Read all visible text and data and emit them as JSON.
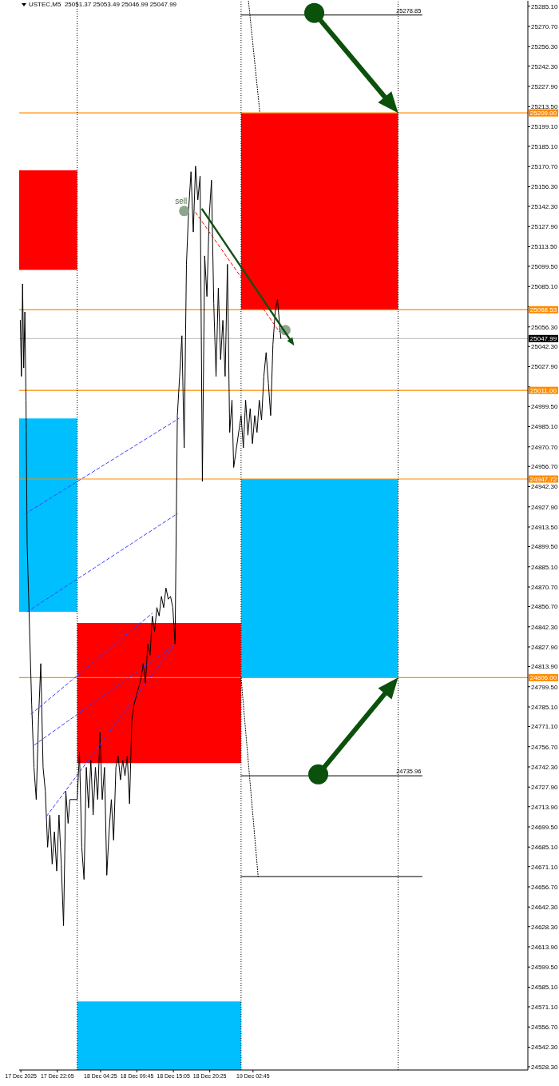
{
  "chart_data": {
    "type": "line",
    "title": "USTEC,M5  25051.37 25053.49 25046.99 25047.99",
    "xlim": [
      "2025-12-17T16:30",
      "2025-12-20T19:00"
    ],
    "xticks": [
      {
        "value": "2025-12-17T16:45",
        "label": "17 Dec 2025"
      },
      {
        "value": "2025-12-17T22:05",
        "label": "17 Dec 22:05"
      },
      {
        "value": "2025-12-18T04:25",
        "label": "18 Dec 04:25"
      },
      {
        "value": "2025-12-18T09:45",
        "label": "18 Dec 09:45"
      },
      {
        "value": "2025-12-18T15:05",
        "label": "18 Dec 15:05"
      },
      {
        "value": "2025-12-18T20:25",
        "label": "18 Dec 20:25"
      },
      {
        "value": "2025-12-19T02:45",
        "label": "19 Dec 02:45"
      }
    ],
    "ylim": [
      24526,
      25289
    ],
    "yticks": [
      {
        "value": 25285.1,
        "label": "25285.10"
      },
      {
        "value": 25270.7,
        "label": "25270.70"
      },
      {
        "value": 25256.3,
        "label": "25256.30"
      },
      {
        "value": 25242.3,
        "label": "25242.30"
      },
      {
        "value": 25227.9,
        "label": "25227.90"
      },
      {
        "value": 25213.5,
        "label": "25213.50"
      },
      {
        "value": 25199.1,
        "label": "25199.10"
      },
      {
        "value": 25185.1,
        "label": "25185.10"
      },
      {
        "value": 25170.7,
        "label": "25170.70"
      },
      {
        "value": 25156.3,
        "label": "25156.30"
      },
      {
        "value": 25142.3,
        "label": "25142.30"
      },
      {
        "value": 25127.9,
        "label": "25127.90"
      },
      {
        "value": 25113.5,
        "label": "25113.50"
      },
      {
        "value": 25099.5,
        "label": "25099.50"
      },
      {
        "value": 25085.1,
        "label": "25085.10"
      },
      {
        "value": 25070.7,
        "label": null
      },
      {
        "value": 25056.3,
        "label": "25056.30"
      },
      {
        "value": 25042.3,
        "label": "25042.30"
      },
      {
        "value": 25027.9,
        "label": "25027.90"
      },
      {
        "value": 25013.5,
        "label": null
      },
      {
        "value": 24999.5,
        "label": "24999.50"
      },
      {
        "value": 24985.1,
        "label": "24985.10"
      },
      {
        "value": 24970.7,
        "label": "24970.70"
      },
      {
        "value": 24956.7,
        "label": "24956.70"
      },
      {
        "value": 24942.3,
        "label": "24942.30"
      },
      {
        "value": 24927.9,
        "label": "24927.90"
      },
      {
        "value": 24913.5,
        "label": "24913.50"
      },
      {
        "value": 24899.5,
        "label": "24899.50"
      },
      {
        "value": 24885.1,
        "label": "24885.10"
      },
      {
        "value": 24870.7,
        "label": "24870.70"
      },
      {
        "value": 24856.7,
        "label": "24856.70"
      },
      {
        "value": 24842.3,
        "label": "24842.30"
      },
      {
        "value": 24827.9,
        "label": "24827.90"
      },
      {
        "value": 24813.9,
        "label": "24813.90"
      },
      {
        "value": 24799.5,
        "label": "24799.50"
      },
      {
        "value": 24785.1,
        "label": "24785.10"
      },
      {
        "value": 24771.1,
        "label": "24771.10"
      },
      {
        "value": 24756.7,
        "label": "24756.70"
      },
      {
        "value": 24742.3,
        "label": "24742.30"
      },
      {
        "value": 24727.9,
        "label": "24727.90"
      },
      {
        "value": 24713.9,
        "label": "24713.90"
      },
      {
        "value": 24699.5,
        "label": "24699.50"
      },
      {
        "value": 24685.1,
        "label": "24685.10"
      },
      {
        "value": 24671.1,
        "label": "24671.10"
      },
      {
        "value": 24656.7,
        "label": "24656.70"
      },
      {
        "value": 24642.3,
        "label": "24642.30"
      },
      {
        "value": 24628.3,
        "label": "24628.30"
      },
      {
        "value": 24613.9,
        "label": "24613.90"
      },
      {
        "value": 24599.5,
        "label": "24599.50"
      },
      {
        "value": 24585.1,
        "label": "24585.10"
      },
      {
        "value": 24571.1,
        "label": "24571.10"
      },
      {
        "value": 24556.7,
        "label": "24556.70"
      },
      {
        "value": 24542.3,
        "label": "24542.30"
      },
      {
        "value": 24528.3,
        "label": "24528.30"
      }
    ],
    "series": [
      {
        "type": "area",
        "color": "#ff0000",
        "x": [
          "2025-12-17T16:30",
          "2025-12-18T01:00"
        ],
        "values": [
          null,
          null
        ],
        "lower": [
          25097,
          25097
        ],
        "upper": [
          25168,
          25168
        ]
      },
      {
        "type": "area",
        "color": "#00bfff",
        "x": [
          "2025-12-17T16:30",
          "2025-12-18T01:00"
        ],
        "values": [
          null,
          null
        ],
        "lower": [
          24853,
          24853
        ],
        "upper": [
          24991,
          24991
        ]
      },
      {
        "type": "area",
        "color": "#ff0000",
        "x": [
          "2025-12-18T01:00",
          "2025-12-19T01:00"
        ],
        "values": [
          null,
          null
        ],
        "lower": [
          24745,
          24745
        ],
        "upper": [
          24845,
          24845
        ]
      },
      {
        "type": "area",
        "color": "#00bfff",
        "x": [
          "2025-12-18T01:00",
          "2025-12-19T01:00"
        ],
        "values": [
          null,
          null
        ],
        "lower": [
          24526,
          24526
        ],
        "upper": [
          24575,
          24575
        ]
      },
      {
        "type": "area",
        "color": "#ff0000",
        "x": [
          "2025-12-19T01:00",
          "2025-12-20T00:00"
        ],
        "values": [
          null,
          null
        ],
        "lower": [
          25068.53,
          25068.53
        ],
        "upper": [
          25209,
          25209
        ]
      },
      {
        "type": "area",
        "color": "#00bfff",
        "x": [
          "2025-12-19T01:00",
          "2025-12-20T00:00"
        ],
        "values": [
          null,
          null
        ],
        "lower": [
          24806,
          24806
        ],
        "upper": [
          24947.72,
          24947.72
        ]
      },
      {
        "color": "#000000",
        "x": [
          "2025-12-17T16:40",
          "2025-12-17T16:50",
          "2025-12-17T17:00",
          "2025-12-17T17:10",
          "2025-12-17T17:20",
          "2025-12-17T17:30",
          "2025-12-17T17:40",
          "2025-12-17T18:00",
          "2025-12-17T18:20",
          "2025-12-17T18:40",
          "2025-12-17T19:00",
          "2025-12-17T19:20",
          "2025-12-17T19:40",
          "2025-12-17T20:00",
          "2025-12-17T20:20",
          "2025-12-17T20:40",
          "2025-12-17T21:00",
          "2025-12-17T21:20",
          "2025-12-17T21:40",
          "2025-12-17T22:00",
          "2025-12-17T22:20",
          "2025-12-17T22:40",
          "2025-12-17T23:00",
          "2025-12-17T23:20",
          "2025-12-17T23:40",
          "2025-12-17T23:55",
          "2025-12-18T01:00",
          "2025-12-18T01:20",
          "2025-12-18T01:40",
          "2025-12-18T02:00",
          "2025-12-18T02:20",
          "2025-12-18T02:40",
          "2025-12-18T03:00",
          "2025-12-18T03:20",
          "2025-12-18T03:40",
          "2025-12-18T04:00",
          "2025-12-18T04:20",
          "2025-12-18T04:40",
          "2025-12-18T05:00",
          "2025-12-18T05:20",
          "2025-12-18T05:40",
          "2025-12-18T06:00",
          "2025-12-18T06:20",
          "2025-12-18T06:40",
          "2025-12-18T07:00",
          "2025-12-18T07:20",
          "2025-12-18T07:40",
          "2025-12-18T08:00",
          "2025-12-18T08:20",
          "2025-12-18T08:40",
          "2025-12-18T09:00",
          "2025-12-18T09:20",
          "2025-12-18T09:40",
          "2025-12-18T10:00",
          "2025-12-18T10:20",
          "2025-12-18T10:40",
          "2025-12-18T11:00",
          "2025-12-18T11:20",
          "2025-12-18T11:40",
          "2025-12-18T12:00",
          "2025-12-18T12:20",
          "2025-12-18T12:40",
          "2025-12-18T13:00",
          "2025-12-18T13:20",
          "2025-12-18T13:40",
          "2025-12-18T14:00",
          "2025-12-18T14:20",
          "2025-12-18T14:40",
          "2025-12-18T15:00",
          "2025-12-18T15:20",
          "2025-12-18T15:40",
          "2025-12-18T16:00",
          "2025-12-18T16:20",
          "2025-12-18T16:40",
          "2025-12-18T17:00",
          "2025-12-18T17:20",
          "2025-12-18T17:40",
          "2025-12-18T18:00",
          "2025-12-18T18:20",
          "2025-12-18T18:40",
          "2025-12-18T19:00",
          "2025-12-18T19:20",
          "2025-12-18T19:40",
          "2025-12-18T20:00",
          "2025-12-18T20:20",
          "2025-12-18T20:40",
          "2025-12-18T21:00",
          "2025-12-18T21:20",
          "2025-12-18T21:40",
          "2025-12-18T22:00",
          "2025-12-18T22:20",
          "2025-12-18T22:40",
          "2025-12-18T23:00",
          "2025-12-18T23:20",
          "2025-12-18T23:40",
          "2025-12-18T23:55",
          "2025-12-19T01:00",
          "2025-12-19T01:20",
          "2025-12-19T01:40",
          "2025-12-19T02:00",
          "2025-12-19T02:20",
          "2025-12-19T02:40",
          "2025-12-19T03:00",
          "2025-12-19T03:20",
          "2025-12-19T03:40",
          "2025-12-19T04:00",
          "2025-12-19T04:20",
          "2025-12-19T04:40",
          "2025-12-19T05:00",
          "2025-12-19T05:20",
          "2025-12-19T05:40",
          "2025-12-19T06:00",
          "2025-12-19T06:20",
          "2025-12-19T06:40",
          "2025-12-19T06:50"
        ],
        "values": [
          25061,
          25021,
          25087,
          25027,
          25067,
          25004,
          24902,
          24844,
          24787,
          24742,
          24719,
          24776,
          24816,
          24742,
          24725,
          24685,
          24708,
          24673,
          24696,
          24668,
          24708,
          24673,
          24629,
          24725,
          24702,
          24719,
          24719,
          24753,
          24685,
          24662,
          24742,
          24713,
          24747,
          24708,
          24742,
          24719,
          24767,
          24719,
          24742,
          24665,
          24696,
          24719,
          24690,
          24742,
          24750,
          24733,
          24747,
          24736,
          24750,
          24716,
          24776,
          24787,
          24793,
          24799,
          24805,
          24816,
          24802,
          24830,
          24822,
          24850,
          24839,
          24856,
          24850,
          24864,
          24856,
          24870,
          24862,
          24864,
          24856,
          24830,
          24993,
          25021,
          25050,
          24970,
          25101,
          25141,
          25167,
          25124,
          25171,
          25147,
          25164,
          24946,
          25107,
          25078,
          25135,
          25161,
          25073,
          25021,
          25084,
          25033,
          25061,
          25021,
          25101,
          24981,
          25004,
          24956,
          24993,
          24970,
          25004,
          24979,
          24998,
          24973,
          24993,
          24981,
          25004,
          24990,
          25021,
          25038,
          25016,
          24993,
          25044,
          25067,
          25076,
          25056,
          25047.99
        ]
      },
      {
        "type": "line",
        "color": "#3c3cff",
        "line_style": "dashed",
        "x": [
          "2025-12-17T17:25",
          "2025-12-18T15:55"
        ],
        "values": [
          24923,
          24991
        ]
      },
      {
        "type": "line",
        "color": "#3c3cff",
        "line_style": "dashed",
        "x": [
          "2025-12-17T17:40",
          "2025-12-18T15:40"
        ],
        "values": [
          24853,
          24923
        ]
      },
      {
        "type": "line",
        "color": "#3c3cff",
        "line_style": "dashed",
        "x": [
          "2025-12-17T18:15",
          "2025-12-18T12:00"
        ],
        "values": [
          24780,
          24852
        ]
      },
      {
        "type": "line",
        "color": "#3c3cff",
        "line_style": "dashed",
        "x": [
          "2025-12-17T18:45",
          "2025-12-18T15:10"
        ],
        "values": [
          24758,
          24829
        ]
      },
      {
        "type": "line",
        "color": "#3c3cff",
        "line_style": "dashed",
        "x": [
          "2025-12-17T20:30",
          "2025-12-18T15:10"
        ],
        "values": [
          24707,
          24829
        ]
      },
      {
        "type": "line",
        "color": "#ff0000",
        "line_style": "dashed",
        "x": [
          "2025-12-18T18:20",
          "2025-12-19T06:35"
        ],
        "values": [
          25138,
          25053
        ]
      },
      {
        "type": "line",
        "color": "#000000",
        "x": [
          "2025-12-19T01:00",
          "2025-12-20T03:30"
        ],
        "values": [
          25278.85,
          25278.85
        ],
        "value_labels": [
          null,
          "25278.85"
        ]
      },
      {
        "type": "line",
        "color": "#000000",
        "x": [
          "2025-12-19T01:00",
          "2025-12-20T03:30"
        ],
        "values": [
          24735.96,
          24735.96
        ],
        "value_labels": [
          null,
          "24735.96"
        ]
      },
      {
        "type": "line",
        "color": "#000000",
        "x": [
          "2025-12-19T01:00",
          "2025-12-20T03:30"
        ],
        "values": [
          24664,
          24664
        ]
      },
      {
        "type": "line",
        "color": "#000000",
        "line_style": "dotted",
        "x": [
          "2025-12-19T02:05",
          "2025-12-19T03:45"
        ],
        "values": [
          25289,
          25209
        ]
      },
      {
        "type": "line",
        "color": "#000000",
        "line_style": "dotted",
        "x": [
          "2025-12-19T01:00",
          "2025-12-19T03:30"
        ],
        "values": [
          24806,
          24664
        ]
      },
      {
        "type": "scatter",
        "color": "#8da68d",
        "marker": "circle",
        "x": [
          "2025-12-18T16:40",
          "2025-12-19T07:30"
        ],
        "values": [
          25139,
          25054
        ]
      }
    ],
    "ref_lines": [
      {
        "axis": "y",
        "value": 25209,
        "label": "25209.00",
        "color": "#ff8c00"
      },
      {
        "axis": "y",
        "value": 25068.53,
        "label": "25068.53",
        "color": "#ff8c00"
      },
      {
        "axis": "y",
        "value": 25047.99,
        "label": "25047.99",
        "color": "#c8c8c8"
      },
      {
        "axis": "y",
        "value": 25011,
        "label": "25011.00",
        "color": "#ff8c00"
      },
      {
        "axis": "y",
        "value": 24947.72,
        "label": "24947.72",
        "color": "#ff8c00"
      },
      {
        "axis": "y",
        "value": 24806,
        "label": "24806.00",
        "color": "#ff8c00"
      },
      {
        "axis": "x",
        "value": "2025-12-18T01:00",
        "color": "#000000",
        "line_style": "dotted"
      },
      {
        "axis": "x",
        "value": "2025-12-19T01:00",
        "color": "#000000",
        "line_style": "dotted"
      },
      {
        "axis": "x",
        "value": "2025-12-20T00:00",
        "color": "#000000",
        "line_style": "dotted"
      }
    ],
    "annotations": [
      {
        "text": "sell",
        "x": "2025-12-18T16:40",
        "y": 25139
      }
    ]
  }
}
